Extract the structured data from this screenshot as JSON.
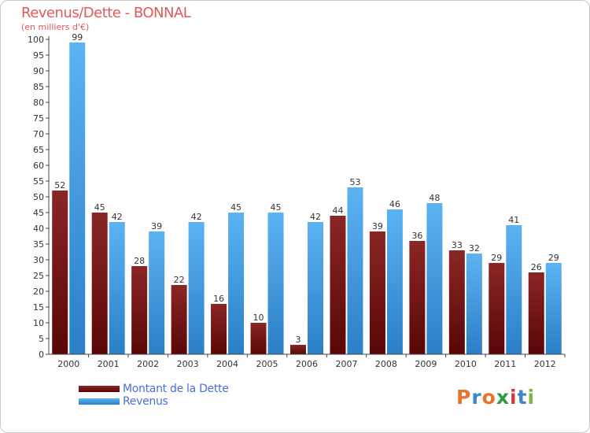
{
  "chart_data": {
    "type": "bar",
    "title": "Revenus/Dette - BONNAL",
    "subtitle": "(en milliers d'€)",
    "categories": [
      "2000",
      "2001",
      "2002",
      "2003",
      "2004",
      "2005",
      "2006",
      "2007",
      "2008",
      "2009",
      "2010",
      "2011",
      "2012"
    ],
    "series": [
      {
        "name": "Montant de la Dette",
        "color": "#7a1212",
        "values": [
          52,
          45,
          28,
          22,
          16,
          10,
          3,
          44,
          39,
          36,
          33,
          29,
          26
        ]
      },
      {
        "name": "Revenus",
        "color": "#3f9be0",
        "values": [
          99,
          42,
          39,
          42,
          45,
          45,
          42,
          53,
          46,
          48,
          32,
          41,
          29
        ]
      }
    ],
    "ylim": [
      0,
      100
    ],
    "ytick_step": 5,
    "xlabel": "",
    "ylabel": "",
    "legend": "bottom-left",
    "grid": false
  },
  "brand": {
    "text": "Proxiti",
    "colors": [
      "#e8742c",
      "#3a86c9",
      "#e8742c",
      "#2f9c3e",
      "#d23a3a",
      "#3a86c9",
      "#7cb342"
    ]
  }
}
